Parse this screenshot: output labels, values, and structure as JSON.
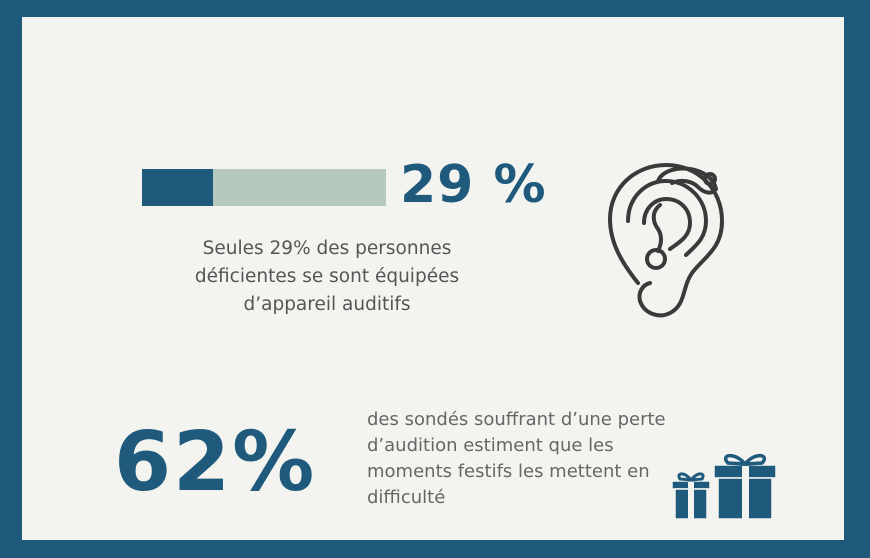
{
  "stat_equipped": {
    "value": "29 %",
    "fraction": 0.29,
    "description": "Seules 29% des personnes déficientes se sont équipées d’appareil auditifs",
    "icon": "ear-hearing-aid-icon"
  },
  "stat_festive": {
    "value": "62%",
    "description": "des sondés souffrant d’une perte d’audition estiment que les moments festifs les mettent en difficulté",
    "icon": "gift-boxes-icon"
  },
  "colors": {
    "frame": "#1f5a7d",
    "background": "#f3f4f0",
    "bar_track": "#b5c9bf",
    "bar_fill": "#1f5a7d",
    "text": "#555555",
    "icon_stroke": "#3a3a3a"
  }
}
